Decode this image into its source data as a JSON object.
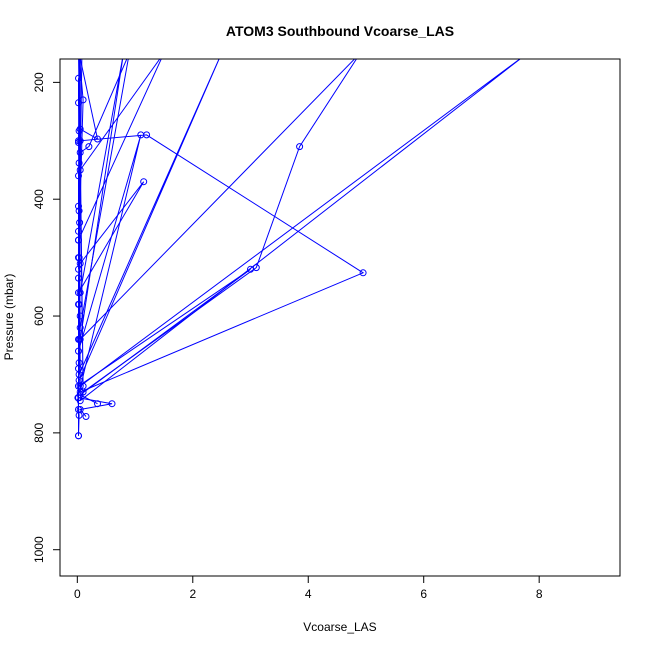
{
  "chart_data": {
    "type": "line",
    "title": "ATOM3 Southbound Vcoarse_LAS",
    "xlabel": "Vcoarse_LAS",
    "ylabel": "Pressure (mbar)",
    "xlim": [
      -0.3,
      9.4
    ],
    "ylim": [
      1045,
      160
    ],
    "y_reversed": true,
    "x_ticks": [
      0,
      2,
      4,
      6,
      8
    ],
    "y_ticks": [
      200,
      400,
      600,
      800,
      1000
    ],
    "series_color": "#0000ff",
    "series": [
      {
        "x": [
          0.02,
          0.03,
          0.01,
          1.1,
          0.02,
          0.8,
          0.05,
          0.02,
          0.1,
          0.03,
          0.02,
          1.5,
          0.05,
          0.05,
          0.02,
          0.04,
          0.03
        ],
        "y": [
          805,
          770,
          740,
          290,
          660,
          150,
          560,
          500,
          230,
          150,
          470,
          150,
          350,
          150,
          300,
          150,
          420
        ]
      },
      {
        "x": [
          0.15,
          0.05,
          0.6,
          0.02,
          0.03,
          2.5,
          0.03,
          0.05,
          0.9,
          0.2,
          0.05,
          0.03,
          0.35,
          0.05,
          0.04
        ],
        "y": [
          772,
          760,
          750,
          740,
          710,
          150,
          700,
          620,
          150,
          310,
          320,
          150,
          297,
          280,
          150
        ]
      },
      {
        "x": [
          0.35,
          0.05,
          3.0,
          0.02,
          0.03,
          0.05,
          0.02,
          1.15,
          0.05,
          0.02,
          0.04,
          0.08,
          0.03
        ],
        "y": [
          750,
          735,
          520,
          720,
          680,
          600,
          560,
          370,
          510,
          470,
          440,
          150,
          150
        ]
      },
      {
        "x": [
          0.05,
          4.95,
          1.2,
          0.05,
          0.03,
          0.05,
          0.02,
          0.03,
          0.04
        ],
        "y": [
          730,
          526,
          290,
          300,
          640,
          150,
          520,
          150,
          150
        ]
      },
      {
        "x": [
          0.1,
          3.1,
          3.85,
          4.9,
          0.05,
          0.03,
          0.05,
          0.02
        ],
        "y": [
          730,
          517,
          310,
          150,
          640,
          580,
          150,
          150
        ]
      },
      {
        "x": [
          0.05,
          7.8,
          0.05,
          0.03,
          0.1,
          0.02
        ],
        "y": [
          745,
          150,
          720,
          150,
          720,
          150
        ]
      },
      {
        "x": [
          0.02,
          0.02,
          0.03,
          0.02,
          0.03,
          0.02,
          0.02,
          0.02,
          0.03,
          0.02,
          0.02,
          0.02,
          0.02,
          0.02,
          0.02
        ],
        "y": [
          193,
          235,
          283,
          303,
          338,
          360,
          412,
          455,
          500,
          535,
          580,
          640,
          690,
          760,
          805
        ]
      }
    ]
  }
}
